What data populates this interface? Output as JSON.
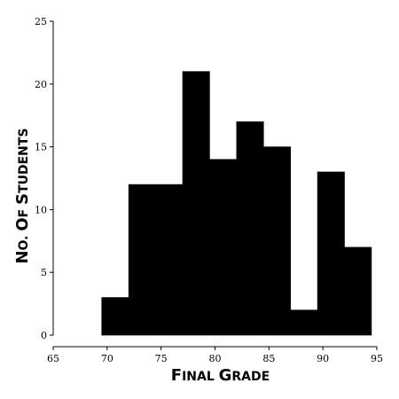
{
  "chart_data": {
    "type": "bar",
    "subtype": "histogram",
    "xlabel": "Final Grade",
    "ylabel": "No. of Students",
    "xlim": [
      65,
      95
    ],
    "ylim": [
      0,
      25
    ],
    "xticks": [
      65,
      70,
      75,
      80,
      85,
      90,
      95
    ],
    "yticks": [
      0,
      5,
      10,
      15,
      20,
      25
    ],
    "bins": [
      {
        "x0": 69.5,
        "x1": 72.0,
        "value": 3
      },
      {
        "x0": 72.0,
        "x1": 74.5,
        "value": 12
      },
      {
        "x0": 74.5,
        "x1": 77.0,
        "value": 12
      },
      {
        "x0": 77.0,
        "x1": 79.5,
        "value": 21
      },
      {
        "x0": 79.5,
        "x1": 82.0,
        "value": 14
      },
      {
        "x0": 82.0,
        "x1": 84.5,
        "value": 17
      },
      {
        "x0": 84.5,
        "x1": 87.0,
        "value": 15
      },
      {
        "x0": 87.0,
        "x1": 89.5,
        "value": 2
      },
      {
        "x0": 89.5,
        "x1": 92.0,
        "value": 13
      },
      {
        "x0": 92.0,
        "x1": 94.5,
        "value": 7
      }
    ],
    "bar_color": "#000000",
    "grid": false
  }
}
